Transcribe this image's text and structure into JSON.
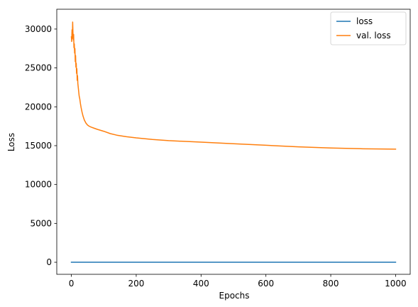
{
  "chart_data": {
    "type": "line",
    "title": "",
    "xlabel": "Epochs",
    "ylabel": "Loss",
    "xlim": [
      -45,
      1045
    ],
    "ylim": [
      -1550,
      32550
    ],
    "xticks": [
      0,
      200,
      400,
      600,
      800,
      1000
    ],
    "yticks": [
      0,
      5000,
      10000,
      15000,
      20000,
      25000,
      30000
    ],
    "grid": false,
    "legend_position": "top-right",
    "series": [
      {
        "name": "loss",
        "color": "#1f77b4",
        "x": [
          0,
          1000
        ],
        "y": [
          0,
          0
        ]
      },
      {
        "name": "val. loss",
        "color": "#ff7f0e",
        "x": [
          0,
          1,
          2,
          3,
          4,
          5,
          6,
          7,
          8,
          9,
          10,
          11,
          12,
          13,
          14,
          15,
          16,
          17,
          18,
          19,
          20,
          22,
          24,
          26,
          28,
          30,
          33,
          36,
          40,
          45,
          50,
          55,
          60,
          70,
          80,
          100,
          120,
          140,
          170,
          200,
          250,
          300,
          400,
          500,
          600,
          700,
          800,
          900,
          1000
        ],
        "y": [
          29000,
          28400,
          29900,
          28800,
          30900,
          29500,
          28600,
          29300,
          27600,
          28100,
          26900,
          27500,
          25800,
          26600,
          25100,
          25600,
          24300,
          24900,
          23400,
          24000,
          23000,
          22200,
          21400,
          21000,
          20400,
          19900,
          19300,
          18800,
          18300,
          17900,
          17650,
          17500,
          17400,
          17250,
          17100,
          16850,
          16550,
          16350,
          16150,
          16000,
          15800,
          15650,
          15450,
          15250,
          15050,
          14850,
          14700,
          14600,
          14550
        ]
      }
    ]
  }
}
